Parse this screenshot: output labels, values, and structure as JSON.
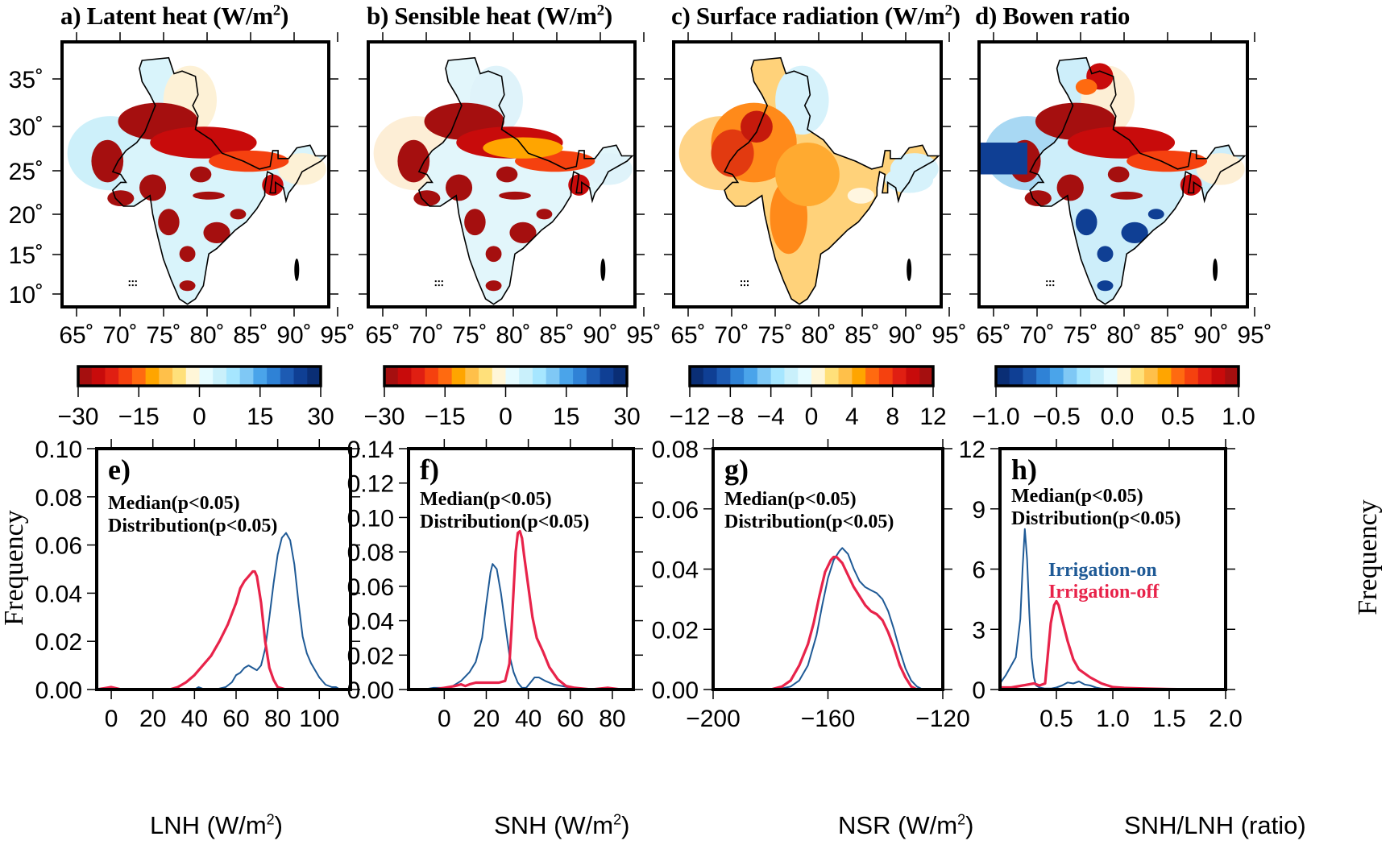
{
  "figure": {
    "map_panels": [
      {
        "id": "a",
        "title": "a) Latent heat (W/m",
        "title_sup": "2",
        "title_end": ")",
        "palette": "red-to-blue",
        "colorbar_ticks": [
          "−30",
          "−15",
          "0",
          "15",
          "30"
        ],
        "colorbar_range": [
          -30,
          30
        ]
      },
      {
        "id": "b",
        "title": "b) Sensible heat (W/m",
        "title_sup": "2",
        "title_end": ")",
        "palette": "red-to-blue",
        "colorbar_ticks": [
          "−30",
          "−15",
          "0",
          "15",
          "30"
        ],
        "colorbar_range": [
          -30,
          30
        ]
      },
      {
        "id": "c",
        "title": "c) Surface radiation (W/m",
        "title_sup": "2",
        "title_end": ")",
        "palette": "blue-to-red",
        "colorbar_ticks": [
          "−12",
          "−8",
          "−4",
          "0",
          "4",
          "8",
          "12"
        ],
        "colorbar_range": [
          -12,
          12
        ]
      },
      {
        "id": "d",
        "title": "d) Bowen ratio",
        "title_sup": "",
        "title_end": "",
        "palette": "blue-to-red",
        "colorbar_ticks": [
          "−1.0",
          "−0.5",
          "0.0",
          "0.5",
          "1.0"
        ],
        "colorbar_range": [
          -1,
          1
        ]
      }
    ],
    "lon_ticks": [
      "65˚",
      "70˚",
      "75˚",
      "80˚",
      "85˚",
      "90˚",
      "95˚"
    ],
    "lat_ticks": [
      "35˚",
      "30˚",
      "25˚",
      "20˚",
      "15˚",
      "10˚"
    ],
    "colorbar_colors_red_to_blue": [
      "#a50f0f",
      "#c80b0b",
      "#e01f12",
      "#f5410f",
      "#ff6a10",
      "#ffa500",
      "#ffc04a",
      "#ffe07a",
      "#fff6d8",
      "#e5fbff",
      "#c9f0fb",
      "#a6e6ff",
      "#7fc8f5",
      "#4aa4ea",
      "#2f82d6",
      "#1d5bb3",
      "#0f3f94",
      "#0a2e75"
    ],
    "annotation_line1": "Median(p<0.05)",
    "annotation_line2": "Distribution(p<0.05)",
    "legend": {
      "on": "Irrigation-on",
      "off": "Irrigation-off"
    },
    "ylabel": "Frequency",
    "colors": {
      "irrigation_on": "#1f5a96",
      "irrigation_off": "#e8234a"
    }
  },
  "chart_data": [
    {
      "type": "line",
      "panel": "e",
      "label": "e)",
      "xlabel": "LNH (W/m",
      "xlabel_sup": "2",
      "xlabel_end": ")",
      "ylabel": "Frequency",
      "ylabel_side": "left",
      "xlim": [
        -7,
        115
      ],
      "ylim": [
        0,
        0.1
      ],
      "xticks": [
        0,
        20,
        40,
        60,
        80,
        100
      ],
      "xtick_labels": [
        "0",
        "20",
        "40",
        "60",
        "80",
        "100"
      ],
      "yticks": [
        0,
        0.02,
        0.04,
        0.06,
        0.08,
        0.1
      ],
      "ytick_labels": [
        "0.00",
        "0.02",
        "0.04",
        "0.06",
        "0.08",
        "0.10"
      ],
      "series": [
        {
          "name": "Irrigation-on",
          "color": "#1f5a96",
          "x": [
            40,
            42,
            45,
            50,
            55,
            58,
            60,
            62,
            64,
            66,
            68,
            70,
            72,
            74,
            76,
            78,
            80,
            82,
            84,
            86,
            88,
            90,
            92,
            94,
            96,
            98,
            100,
            103,
            106,
            108,
            110
          ],
          "y": [
            0.0,
            0.001,
            0.0,
            0.0,
            0.001,
            0.003,
            0.006,
            0.007,
            0.009,
            0.01,
            0.009,
            0.008,
            0.01,
            0.017,
            0.03,
            0.044,
            0.056,
            0.063,
            0.065,
            0.062,
            0.052,
            0.036,
            0.022,
            0.015,
            0.011,
            0.008,
            0.005,
            0.002,
            0.001,
            0.001,
            0.0
          ]
        },
        {
          "name": "Irrigation-off",
          "color": "#e8234a",
          "x": [
            -7,
            0,
            5,
            10,
            20,
            28,
            32,
            36,
            40,
            44,
            48,
            52,
            56,
            60,
            62,
            64,
            66,
            68,
            69,
            70,
            72,
            74,
            76,
            78,
            80,
            84,
            90
          ],
          "y": [
            0.0,
            0.001,
            0.0,
            0.0,
            0.0,
            0.0,
            0.001,
            0.003,
            0.006,
            0.01,
            0.014,
            0.02,
            0.027,
            0.036,
            0.042,
            0.045,
            0.047,
            0.049,
            0.049,
            0.047,
            0.036,
            0.02,
            0.009,
            0.004,
            0.001,
            0.0,
            0.0
          ]
        }
      ]
    },
    {
      "type": "line",
      "panel": "f",
      "label": "f)",
      "xlabel": "SNH (W/m",
      "xlabel_sup": "2",
      "xlabel_end": ")",
      "ylabel": "",
      "ylabel_side": "left",
      "xlim": [
        -17,
        90
      ],
      "ylim": [
        0,
        0.14
      ],
      "xticks": [
        0,
        20,
        40,
        60,
        80
      ],
      "xtick_labels": [
        "0",
        "20",
        "40",
        "60",
        "80"
      ],
      "yticks": [
        0,
        0.02,
        0.04,
        0.06,
        0.08,
        0.1,
        0.12,
        0.14
      ],
      "ytick_labels": [
        "0.00",
        "0.02",
        "0.04",
        "0.06",
        "0.08",
        "0.10",
        "0.12",
        "0.14"
      ],
      "series": [
        {
          "name": "Irrigation-on",
          "color": "#1f5a96",
          "x": [
            -10,
            -5,
            0,
            4,
            8,
            12,
            15,
            18,
            20,
            22,
            23,
            25,
            27,
            29,
            31,
            33,
            35,
            37,
            39,
            41,
            43,
            45,
            48,
            52,
            56,
            60,
            64
          ],
          "y": [
            0.0,
            0.001,
            0.001,
            0.002,
            0.005,
            0.01,
            0.016,
            0.03,
            0.05,
            0.068,
            0.073,
            0.07,
            0.056,
            0.038,
            0.02,
            0.01,
            0.004,
            0.001,
            0.001,
            0.004,
            0.007,
            0.007,
            0.005,
            0.003,
            0.002,
            0.001,
            0.0
          ]
        },
        {
          "name": "Irrigation-off",
          "color": "#e8234a",
          "x": [
            -5,
            0,
            5,
            8,
            10,
            12,
            15,
            18,
            22,
            26,
            29,
            31,
            32,
            33,
            34,
            35,
            36,
            37,
            38,
            40,
            42,
            44,
            47,
            50,
            54,
            58,
            62,
            70,
            78,
            84
          ],
          "y": [
            0.0,
            0.001,
            0.002,
            0.003,
            0.002,
            0.003,
            0.004,
            0.004,
            0.004,
            0.004,
            0.005,
            0.015,
            0.035,
            0.058,
            0.08,
            0.091,
            0.092,
            0.088,
            0.078,
            0.06,
            0.042,
            0.03,
            0.022,
            0.013,
            0.006,
            0.002,
            0.001,
            0.0,
            0.001,
            0.0
          ]
        }
      ]
    },
    {
      "type": "line",
      "panel": "g",
      "label": "g)",
      "xlabel": "NSR (W/m",
      "xlabel_sup": "2",
      "xlabel_end": ")",
      "ylabel": "",
      "ylabel_side": "left",
      "xlim": [
        -200,
        -120
      ],
      "ylim": [
        0,
        0.08
      ],
      "xticks": [
        -200,
        -160,
        -120
      ],
      "xtick_labels": [
        "−200",
        "−160",
        "−120"
      ],
      "yticks": [
        0,
        0.02,
        0.04,
        0.06,
        0.08
      ],
      "ytick_labels": [
        "0.00",
        "0.02",
        "0.04",
        "0.06",
        "0.08"
      ],
      "series": [
        {
          "name": "Irrigation-on",
          "color": "#1f5a96",
          "x": [
            -185,
            -178,
            -173,
            -170,
            -167,
            -164,
            -162,
            -160,
            -158,
            -156,
            -155,
            -153,
            -151,
            -149,
            -147,
            -145,
            -143,
            -141,
            -139,
            -137,
            -135,
            -133,
            -131,
            -129,
            -127,
            -125
          ],
          "y": [
            0.0,
            0.0,
            0.001,
            0.003,
            0.008,
            0.018,
            0.028,
            0.037,
            0.043,
            0.046,
            0.047,
            0.045,
            0.04,
            0.036,
            0.034,
            0.033,
            0.032,
            0.03,
            0.026,
            0.02,
            0.013,
            0.007,
            0.003,
            0.001,
            0.0,
            0.0
          ]
        },
        {
          "name": "Irrigation-off",
          "color": "#e8234a",
          "x": [
            -189,
            -180,
            -176,
            -173,
            -170,
            -167,
            -165,
            -163,
            -161,
            -159,
            -158,
            -157,
            -155,
            -153,
            -151,
            -149,
            -147,
            -145,
            -143,
            -141,
            -139,
            -137,
            -135,
            -133,
            -131,
            -129,
            -127
          ],
          "y": [
            0.0,
            0.0,
            0.001,
            0.003,
            0.008,
            0.015,
            0.022,
            0.031,
            0.039,
            0.043,
            0.044,
            0.044,
            0.042,
            0.038,
            0.034,
            0.031,
            0.028,
            0.026,
            0.025,
            0.023,
            0.019,
            0.014,
            0.008,
            0.004,
            0.001,
            0.0,
            0.0
          ]
        }
      ]
    },
    {
      "type": "line",
      "panel": "h",
      "label": "h)",
      "xlabel": "SNH/LNH (ratio)",
      "xlabel_sup": "",
      "xlabel_end": "",
      "ylabel": "Frequency",
      "ylabel_side": "right",
      "xlim": [
        0.0,
        2.0
      ],
      "ylim": [
        0,
        12
      ],
      "xticks": [
        0.5,
        1.0,
        1.5,
        2.0
      ],
      "xtick_labels": [
        "0.5",
        "1.0",
        "1.5",
        "2.0"
      ],
      "yticks": [
        0,
        3,
        6,
        9,
        12
      ],
      "ytick_labels": [
        "0",
        "3",
        "6",
        "9",
        "12"
      ],
      "series": [
        {
          "name": "Irrigation-on",
          "color": "#1f5a96",
          "x": [
            0.0,
            0.05,
            0.1,
            0.14,
            0.18,
            0.2,
            0.22,
            0.24,
            0.26,
            0.28,
            0.3,
            0.32,
            0.35,
            0.4,
            0.45,
            0.5,
            0.55,
            0.6,
            0.65,
            0.7,
            0.75,
            0.8,
            0.85,
            0.9,
            1.0
          ],
          "y": [
            0.3,
            0.7,
            1.2,
            1.6,
            3.5,
            6.0,
            8.0,
            6.5,
            3.8,
            1.6,
            0.6,
            0.2,
            0.1,
            0.05,
            0.05,
            0.1,
            0.2,
            0.35,
            0.3,
            0.4,
            0.25,
            0.2,
            0.1,
            0.05,
            0.0
          ]
        },
        {
          "name": "Irrigation-off",
          "color": "#e8234a",
          "x": [
            0.0,
            0.1,
            0.2,
            0.3,
            0.35,
            0.4,
            0.42,
            0.45,
            0.48,
            0.5,
            0.52,
            0.55,
            0.6,
            0.65,
            0.7,
            0.8,
            0.9,
            1.0,
            1.1,
            1.3,
            1.5,
            1.8
          ],
          "y": [
            0.1,
            0.1,
            0.2,
            0.3,
            0.2,
            0.3,
            1.5,
            3.3,
            4.2,
            4.4,
            4.2,
            3.5,
            2.4,
            1.5,
            1.0,
            0.6,
            0.3,
            0.12,
            0.08,
            0.05,
            0.02,
            0.0
          ]
        }
      ]
    }
  ]
}
